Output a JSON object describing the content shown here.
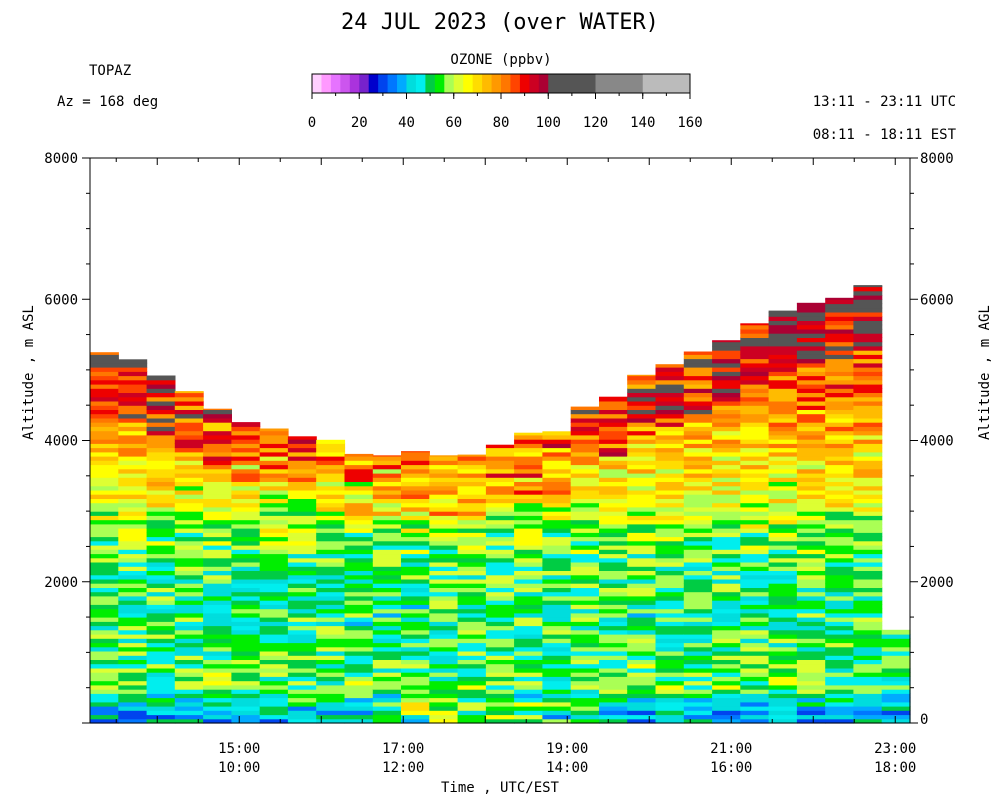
{
  "title": "24 JUL 2023 (over WATER)",
  "station": "TOPAZ",
  "azimuth": "Az = 168 deg",
  "utc_range": "13:11 - 23:11 UTC",
  "est_range": "08:11 - 18:11 EST",
  "colorbar": {
    "title": "OZONE (ppbv)",
    "ticks": [
      "0",
      "20",
      "40",
      "60",
      "80",
      "100",
      "120",
      "140",
      "160"
    ],
    "colors": [
      "#ffd0ff",
      "#ff99ff",
      "#e673ff",
      "#cc55ee",
      "#aa33dd",
      "#7722cc",
      "#0000cc",
      "#0044ee",
      "#0077ff",
      "#00aaff",
      "#00dddd",
      "#00eeee",
      "#00cc44",
      "#00ee00",
      "#aaff55",
      "#ddff33",
      "#ffff00",
      "#ffdd00",
      "#ffbb00",
      "#ff9900",
      "#ff7700",
      "#ff4400",
      "#ee0000",
      "#cc0022",
      "#aa0033",
      "#555555",
      "#888888",
      "#bbbbbb"
    ]
  },
  "chart_data": {
    "type": "heatmap",
    "title": "24 JUL 2023 (over WATER)",
    "xlabel": "Time , UTC/EST",
    "ylabel_left": "Altitude , m ASL",
    "ylabel_right": "Altitude , m AGL",
    "x_unit": "UTC hours",
    "xlim": [
      13.18,
      23.18
    ],
    "ylim": [
      0,
      8000
    ],
    "y_ticks": [
      "2000",
      "4000",
      "6000",
      "8000"
    ],
    "y_ticks_right": [
      "0",
      "2000",
      "4000",
      "6000",
      "8000"
    ],
    "x_ticks": [
      {
        "utc": "15:00",
        "est": "10:00",
        "hour": 15
      },
      {
        "utc": "17:00",
        "est": "12:00",
        "hour": 17
      },
      {
        "utc": "19:00",
        "est": "14:00",
        "hour": 19
      },
      {
        "utc": "21:00",
        "est": "16:00",
        "hour": 21
      },
      {
        "utc": "23:00",
        "est": "18:00",
        "hour": 23
      }
    ],
    "profile_top_altitude_m": [
      5250,
      5150,
      4920,
      4700,
      4450,
      4260,
      4170,
      4060,
      4010,
      3810,
      3790,
      3850,
      3790,
      3800,
      3940,
      4110,
      4130,
      4480,
      4620,
      4930,
      5080,
      5260,
      5420,
      5660,
      5840,
      5950,
      6020,
      6200,
      1320
    ],
    "ozone_layers_ppbv": [
      {
        "top_altitude_m": 200,
        "ozone": 40
      },
      {
        "top_altitude_m": 500,
        "ozone": 55
      },
      {
        "top_altitude_m": 1000,
        "ozone": 52
      },
      {
        "top_altitude_m": 1600,
        "ozone": 50
      },
      {
        "top_altitude_m": 2400,
        "ozone": 54
      },
      {
        "top_altitude_m": 3000,
        "ozone": 62
      },
      {
        "top_altitude_m": 3800,
        "ozone": 70
      },
      {
        "top_altitude_m": 4500,
        "ozone": 80
      },
      {
        "top_altitude_m": 6300,
        "ozone": 92
      }
    ]
  }
}
